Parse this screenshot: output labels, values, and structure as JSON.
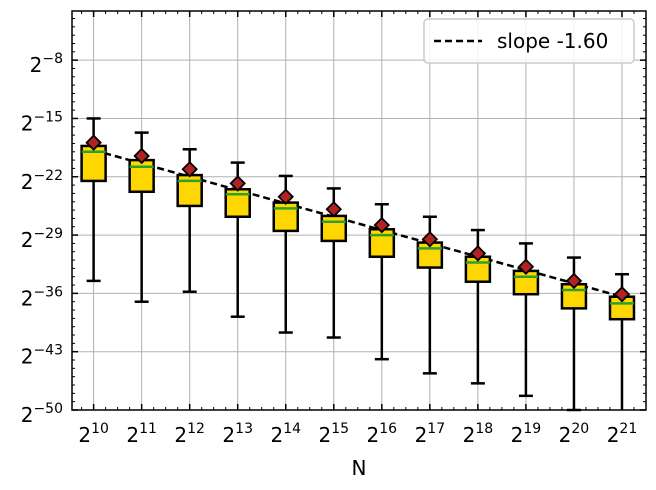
{
  "chart_data": {
    "type": "box",
    "xlabel": "N",
    "ylabel": "",
    "x_scale": "log2",
    "y_scale": "log2",
    "x_tick_labels": [
      {
        "base": "2",
        "exp": "10"
      },
      {
        "base": "2",
        "exp": "11"
      },
      {
        "base": "2",
        "exp": "12"
      },
      {
        "base": "2",
        "exp": "13"
      },
      {
        "base": "2",
        "exp": "14"
      },
      {
        "base": "2",
        "exp": "15"
      },
      {
        "base": "2",
        "exp": "16"
      },
      {
        "base": "2",
        "exp": "17"
      },
      {
        "base": "2",
        "exp": "18"
      },
      {
        "base": "2",
        "exp": "19"
      },
      {
        "base": "2",
        "exp": "20"
      },
      {
        "base": "2",
        "exp": "21"
      }
    ],
    "y_tick_labels": [
      {
        "base": "2",
        "exp": "−8",
        "value": -8
      },
      {
        "base": "2",
        "exp": "−15",
        "value": -15
      },
      {
        "base": "2",
        "exp": "−22",
        "value": -22
      },
      {
        "base": "2",
        "exp": "−29",
        "value": -29
      },
      {
        "base": "2",
        "exp": "−36",
        "value": -36
      },
      {
        "base": "2",
        "exp": "−43",
        "value": -43
      },
      {
        "base": "2",
        "exp": "−50",
        "value": -50
      }
    ],
    "xlim_log2": [
      9.55,
      21.5
    ],
    "ylim_log2": [
      -50,
      -2.1
    ],
    "grid": true,
    "legend": {
      "placement": "top-right",
      "entries": [
        {
          "label": "slope -1.60",
          "style": "dashed",
          "color": "#000000"
        }
      ]
    },
    "boxes": [
      {
        "x": 10,
        "whislo": -34.5,
        "q1": -22.5,
        "med": -19.0,
        "q3": -18.3,
        "whishi": -15.0,
        "mean": -17.9
      },
      {
        "x": 11,
        "whislo": -37.0,
        "q1": -23.8,
        "med": -20.8,
        "q3": -20.0,
        "whishi": -16.7,
        "mean": -19.5
      },
      {
        "x": 12,
        "whislo": -35.8,
        "q1": -25.5,
        "med": -22.5,
        "q3": -21.8,
        "whishi": -18.7,
        "mean": -21.1
      },
      {
        "x": 13,
        "whislo": -38.8,
        "q1": -26.8,
        "med": -24.1,
        "q3": -23.5,
        "whishi": -20.3,
        "mean": -22.8
      },
      {
        "x": 14,
        "whislo": -40.7,
        "q1": -28.5,
        "med": -25.8,
        "q3": -25.1,
        "whishi": -21.9,
        "mean": -24.4
      },
      {
        "x": 15,
        "whislo": -41.3,
        "q1": -29.7,
        "med": -27.4,
        "q3": -26.7,
        "whishi": -23.4,
        "mean": -25.9
      },
      {
        "x": 16,
        "whislo": -43.9,
        "q1": -31.6,
        "med": -29.0,
        "q3": -28.3,
        "whishi": -25.3,
        "mean": -27.8
      },
      {
        "x": 17,
        "whislo": -45.6,
        "q1": -32.9,
        "med": -30.6,
        "q3": -29.9,
        "whishi": -26.8,
        "mean": -29.5
      },
      {
        "x": 18,
        "whislo": -46.8,
        "q1": -34.6,
        "med": -32.3,
        "q3": -31.6,
        "whishi": -28.4,
        "mean": -31.2
      },
      {
        "x": 19,
        "whislo": -48.3,
        "q1": -36.1,
        "med": -34.0,
        "q3": -33.3,
        "whishi": -30.0,
        "mean": -32.8
      },
      {
        "x": 20,
        "whislo": -50.0,
        "q1": -37.8,
        "med": -35.6,
        "q3": -34.9,
        "whishi": -31.7,
        "mean": -34.5
      },
      {
        "x": 21,
        "whislo": -52.3,
        "q1": -39.1,
        "med": -37.2,
        "q3": -36.4,
        "whishi": -33.7,
        "mean": -36.1
      }
    ],
    "fit_line": {
      "x": [
        10,
        21
      ],
      "y": [
        -18.8,
        -36.4
      ]
    },
    "colors": {
      "box_fill": "#ffd700",
      "box_edge": "#000000",
      "median": "#2ca02c",
      "mean_marker": "#b22222",
      "whisker": "#000000",
      "grid": "#b0b0b0",
      "fit_line": "#000000"
    }
  }
}
